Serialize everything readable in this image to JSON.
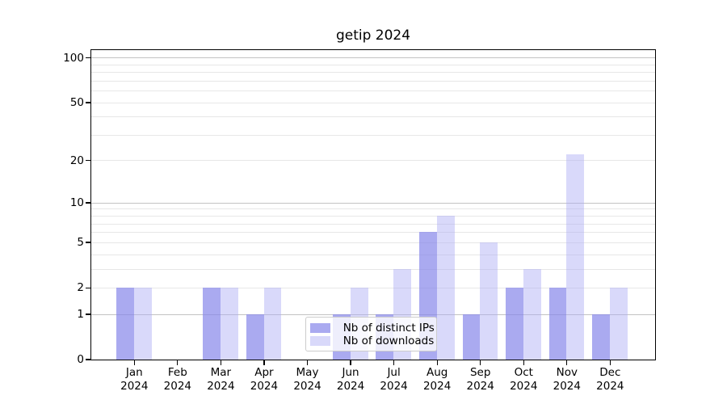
{
  "title": "getip 2024",
  "chart_data": {
    "type": "bar",
    "title": "getip 2024",
    "categories": [
      "Jan",
      "Feb",
      "Mar",
      "Apr",
      "May",
      "Jun",
      "Jul",
      "Aug",
      "Sep",
      "Oct",
      "Nov",
      "Dec"
    ],
    "category_year": "2024",
    "series": [
      {
        "name": "Nb of distinct IPs",
        "color": "rgba(134,134,234,0.7)",
        "values": [
          2,
          0,
          2,
          1,
          0,
          1,
          1,
          6,
          1,
          2,
          2,
          1
        ]
      },
      {
        "name": "Nb of downloads",
        "color": "rgba(170,170,244,0.45)",
        "values": [
          2,
          0,
          2,
          2,
          0,
          2,
          3,
          8,
          5,
          3,
          22,
          2
        ]
      }
    ],
    "yscale": "log1p",
    "yticks": [
      0,
      1,
      2,
      5,
      10,
      20,
      50,
      100
    ],
    "ytick_minor": [
      3,
      4,
      6,
      7,
      8,
      9,
      30,
      40,
      60,
      70,
      80,
      90
    ],
    "ytick_major": [
      1,
      10,
      100
    ],
    "ylim": [
      0,
      113
    ],
    "grid": true,
    "legend_position": "lower center"
  },
  "colors": {
    "bar_distinct_ips": "#a9a9f0",
    "bar_downloads": "#d9d9fa",
    "grid_major": "#c3c3c3",
    "grid_minor": "#e7e7e7",
    "axis": "#000000",
    "background": "#ffffff"
  }
}
